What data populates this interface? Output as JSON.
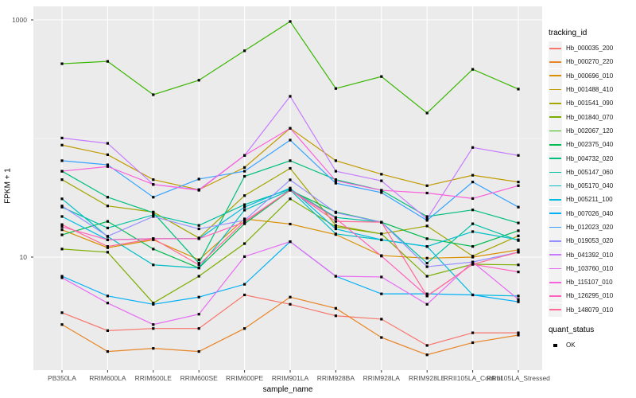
{
  "figure": {
    "y_axis_title": "FPKM + 1",
    "x_axis_title": "sample_name",
    "y_tick_labels": [
      "1000",
      "10"
    ],
    "legend": {
      "tracking_title": "tracking_id",
      "quant_title": "quant_status",
      "quant_items": [
        {
          "label": "OK",
          "marker": "black-square"
        }
      ]
    }
  },
  "chart_data": {
    "type": "line",
    "title": "",
    "xlabel": "sample_name",
    "ylabel": "FPKM + 1",
    "y_scale": "log10",
    "ylim": [
      1.2,
      1300
    ],
    "y_breaks": [
      1000,
      10
    ],
    "y_minor_breaks": [
      100
    ],
    "grid": true,
    "legend_position": "right",
    "panel_bg": "#ebebeb",
    "grid_color": "#ffffff",
    "point_marker": {
      "shape": "square",
      "color": "#000000",
      "maps_to": "quant_status OK"
    },
    "categories": [
      "PB350LA",
      "RRIM600LA",
      "RRIM600LE",
      "RRIM600SE",
      "RRIM600PE",
      "RRIM901LA",
      "RRIM928BA",
      "RRIM928LA",
      "RRIM928LE",
      "RRII105LA_Control",
      "RRII105LA_Stressed"
    ],
    "series": [
      {
        "name": "Hb_000035_200",
        "color": "#F8766D",
        "values": [
          3.4,
          2.4,
          2.5,
          2.5,
          4.8,
          4.0,
          3.2,
          3.0,
          1.8,
          2.3,
          2.3
        ]
      },
      {
        "name": "Hb_000270_220",
        "color": "#E88526",
        "values": [
          2.7,
          1.6,
          1.7,
          1.6,
          2.5,
          4.6,
          3.7,
          2.1,
          1.5,
          1.9,
          2.2
        ]
      },
      {
        "name": "Hb_000696_010",
        "color": "#D89000",
        "values": [
          17,
          12,
          14,
          9.5,
          21,
          19,
          15.5,
          10.3,
          9.8,
          10,
          11.5
        ]
      },
      {
        "name": "Hb_001488_410",
        "color": "#C09B00",
        "values": [
          88,
          73,
          45,
          37,
          57,
          122,
          65,
          50,
          40,
          49,
          43
        ]
      },
      {
        "name": "Hb_001541_090",
        "color": "#A3A500",
        "values": [
          45,
          27,
          24,
          14.5,
          33,
          56,
          18.5,
          15.7,
          18.3,
          10.2,
          15.1
        ]
      },
      {
        "name": "Hb_001840_070",
        "color": "#7CAE00",
        "values": [
          11.7,
          11,
          4.1,
          6.9,
          13,
          31,
          18,
          15.7,
          6.9,
          8.7,
          8.6
        ]
      },
      {
        "name": "Hb_002067_120",
        "color": "#39B600",
        "values": [
          427,
          447,
          234,
          310,
          549,
          970,
          264,
          333,
          164,
          383,
          261
        ]
      },
      {
        "name": "Hb_002375_040",
        "color": "#00BB4E",
        "values": [
          15.4,
          20,
          11.7,
          8.1,
          19.1,
          36.6,
          24,
          19.7,
          14.3,
          12.3,
          16.7
        ]
      },
      {
        "name": "Hb_004732_020",
        "color": "#00BF7D",
        "values": [
          53,
          32,
          23.7,
          8.9,
          48,
          65,
          45,
          36.6,
          22,
          25,
          19.4
        ]
      },
      {
        "name": "Hb_005147_060",
        "color": "#00C1A3",
        "values": [
          26.4,
          17.6,
          22.7,
          18.5,
          27.7,
          37.4,
          21.6,
          19.7,
          8.9,
          19.1,
          13.8
        ]
      },
      {
        "name": "Hb_005170_040",
        "color": "#00BFC4",
        "values": [
          31,
          14.9,
          8.6,
          8.1,
          24.9,
          36.8,
          15.7,
          14,
          12.3,
          16.4,
          14
        ]
      },
      {
        "name": "Hb_005211_100",
        "color": "#00BAE0",
        "values": [
          22,
          14,
          14.3,
          14.3,
          26.4,
          38.2,
          17.3,
          14,
          12.3,
          4.8,
          4.7
        ]
      },
      {
        "name": "Hb_007026_040",
        "color": "#00B0F6",
        "values": [
          6.9,
          4.7,
          4.0,
          4.6,
          5.9,
          13.5,
          6.9,
          4.9,
          4.9,
          4.8,
          4.2
        ]
      },
      {
        "name": "Hb_012023_020",
        "color": "#35A2FF",
        "values": [
          65,
          60,
          32,
          45.5,
          53,
          97,
          42,
          35,
          20.4,
          43,
          26.4
        ]
      },
      {
        "name": "Hb_019053_020",
        "color": "#9590FF",
        "values": [
          27,
          15,
          22,
          17.3,
          20.4,
          44.8,
          23.7,
          19.7,
          8.3,
          9.1,
          11
        ]
      },
      {
        "name": "Hb_041392_010",
        "color": "#C77CFF",
        "values": [
          101,
          91,
          41,
          37,
          72,
          227,
          53,
          44,
          21,
          84,
          72
        ]
      },
      {
        "name": "Hb_103760_010",
        "color": "#E76BF3",
        "values": [
          6.7,
          4.1,
          2.7,
          3.3,
          10.1,
          13.5,
          6.9,
          6.8,
          4.0,
          9.1,
          4.4
        ]
      },
      {
        "name": "Hb_115107_010",
        "color": "#FA62DB",
        "values": [
          53,
          58,
          41,
          36.6,
          72,
          122,
          44,
          36.6,
          34.7,
          31.2,
          40
        ]
      },
      {
        "name": "Hb_126295_010",
        "color": "#FF62BC",
        "values": [
          18,
          14,
          14.3,
          14.3,
          19.7,
          36.8,
          21.2,
          10.2,
          4.7,
          8.7,
          7.5
        ]
      },
      {
        "name": "Hb_148079_010",
        "color": "#FF6A98",
        "values": [
          18.8,
          12.3,
          14.3,
          8.6,
          20,
          36.8,
          20,
          19.7,
          4.7,
          8.7,
          11
        ]
      }
    ]
  }
}
